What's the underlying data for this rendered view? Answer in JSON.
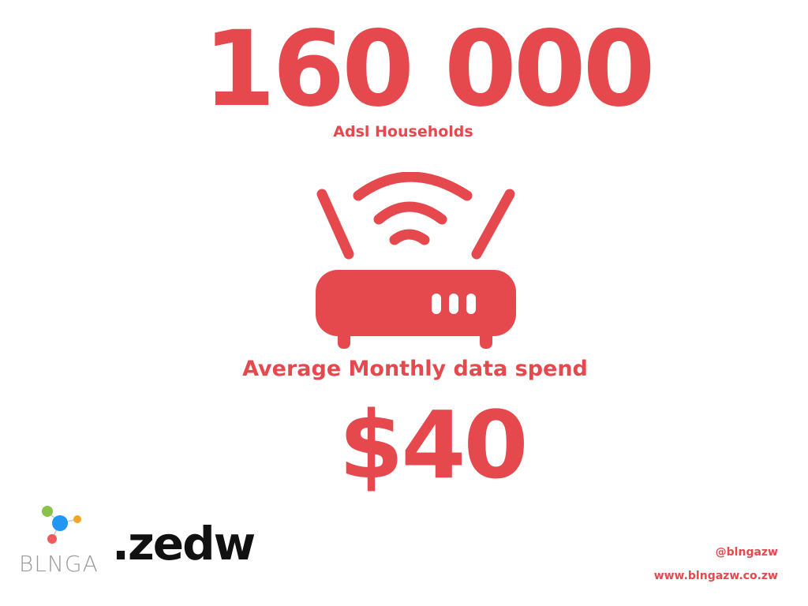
{
  "headline": {
    "number": "160 000",
    "caption": "Adsl Households"
  },
  "icon": {
    "name": "wifi-router-icon",
    "color": "#e5484d"
  },
  "spend": {
    "label": "Average Monthly data spend",
    "value": "$40"
  },
  "brand": {
    "logo_icon": "molecule-icon",
    "wordmark": "BLNGA",
    "suffix": ".zedw"
  },
  "footer": {
    "social_handle": "@blngazw",
    "website": "www.blngazw.co.zw"
  },
  "colors": {
    "accent": "#e5484d",
    "dark": "#111111",
    "muted": "#9a9a9a"
  }
}
